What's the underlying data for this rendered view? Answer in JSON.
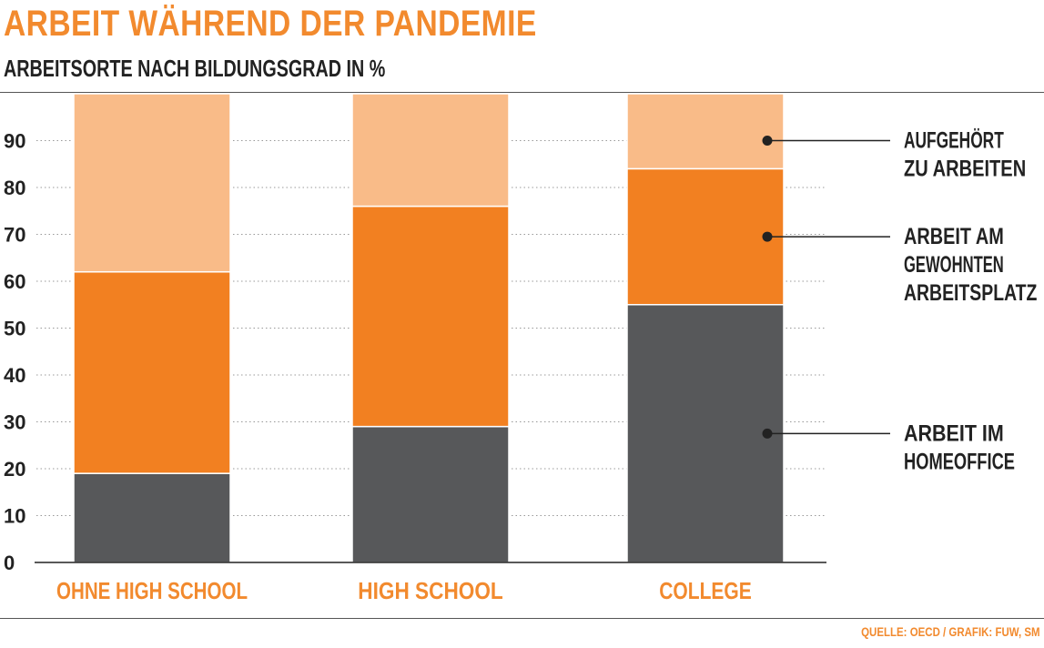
{
  "header": {
    "title": "ARBEIT WÄHREND DER PANDEMIE",
    "subtitle": "ARBEITSORTE NACH BILDUNGSGRAD IN %"
  },
  "footer": {
    "source": "QUELLE: OECD / GRAFIK: FUW, SM"
  },
  "chart_data": {
    "type": "bar",
    "stacked": true,
    "categories": [
      "OHNE HIGH SCHOOL",
      "HIGH SCHOOL",
      "COLLEGE"
    ],
    "series": [
      {
        "name": "ARBEIT IM HOMEOFFICE",
        "label_lines": [
          "ARBEIT IM",
          "HOMEOFFICE"
        ],
        "color": "#57585a",
        "values": [
          19,
          29,
          55
        ]
      },
      {
        "name": "ARBEIT AM GEWOHNTEN ARBEITSPLATZ",
        "label_lines": [
          "ARBEIT AM",
          "GEWOHNTEN",
          "ARBEITSPLATZ"
        ],
        "color": "#f28021",
        "values": [
          43,
          47,
          29
        ]
      },
      {
        "name": "AUFGEHÖRT ZU ARBEITEN",
        "label_lines": [
          "AUFGEHÖRT",
          "ZU ARBEITEN"
        ],
        "color": "#f9bb88",
        "values": [
          38,
          24,
          16
        ]
      }
    ],
    "yticks": [
      0,
      10,
      20,
      30,
      40,
      50,
      60,
      70,
      80,
      90
    ],
    "ylim": [
      0,
      100
    ],
    "grid": true,
    "legend_position": "right",
    "accent_color": "#f28a2e"
  }
}
